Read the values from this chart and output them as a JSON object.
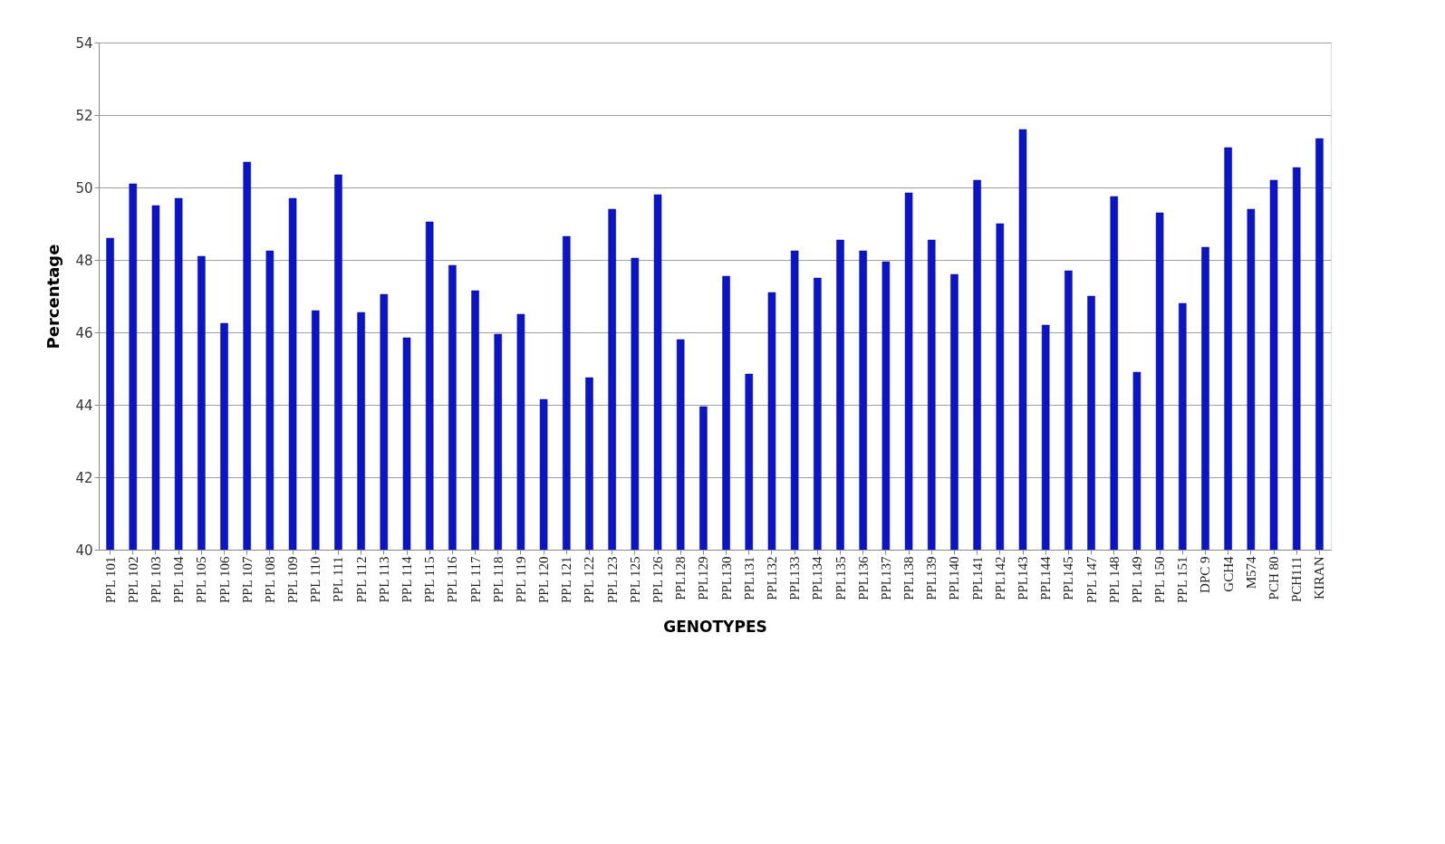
{
  "chart_data": {
    "type": "bar",
    "xlabel": "GENOTYPES",
    "ylabel": "Percentage",
    "categories": [
      "PPL 101",
      "PPL 102",
      "PPL 103",
      "PPL 104",
      "PPL 105",
      "PPL 106",
      "PPL 107",
      "PPL 108",
      "PPL 109",
      "PPL 110",
      "PPL 111",
      "PPL 112",
      "PPL 113",
      "PPL 114",
      "PPL 115",
      "PPL 116",
      "PPL 117",
      "PPL 118",
      "PPL 119",
      "PPL 120",
      "PPL 121",
      "PPL 122",
      "PPL 123",
      "PPL 125",
      "PPL 126",
      "PPL128",
      "PPL129",
      "PPL130",
      "PPL131",
      "PPL132",
      "PPL133",
      "PPL134",
      "PPL135",
      "PPL136",
      "PPL137",
      "PPL138",
      "PPL139",
      "PPL140",
      "PPL141",
      "PPL142",
      "PPL143",
      "PPL144",
      "PPL145",
      "PPL 147",
      "PPL 148",
      "PPL 149",
      "PPL 150",
      "PPL 151",
      "DPC 9",
      "GCH4",
      "M574",
      "PCH 80",
      "PCH111",
      "KIRAN"
    ],
    "values": [
      48.6,
      50.1,
      49.5,
      49.7,
      48.1,
      46.25,
      50.7,
      48.25,
      49.7,
      46.6,
      50.35,
      46.55,
      47.05,
      45.85,
      49.05,
      47.85,
      47.15,
      45.95,
      46.5,
      44.15,
      48.65,
      44.75,
      49.4,
      48.05,
      49.8,
      45.8,
      43.95,
      47.55,
      44.85,
      47.1,
      48.25,
      47.5,
      48.55,
      48.25,
      47.95,
      49.85,
      48.55,
      47.6,
      50.2,
      49.0,
      51.6,
      46.2,
      47.7,
      47.0,
      49.75,
      44.9,
      49.3,
      46.8,
      48.35,
      51.1,
      49.4,
      50.2,
      50.55,
      51.35
    ],
    "color": "#0a14c8",
    "ylim": [
      40,
      54
    ],
    "yticks": [
      40,
      42,
      44,
      46,
      48,
      50,
      52,
      54
    ],
    "grid": "y"
  }
}
